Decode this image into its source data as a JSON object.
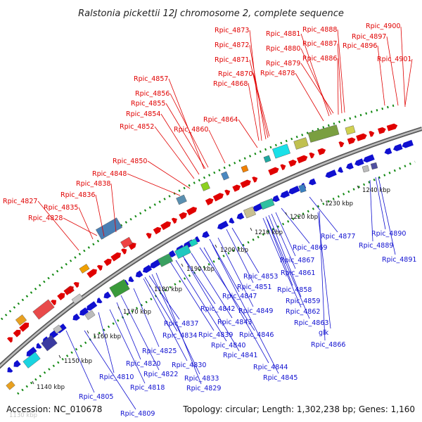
{
  "title": "Ralstonia pickettii 12J chromosome 2, complete sequence",
  "footer": {
    "accession": "Accession: NC_010678",
    "stats": "Topology: circular; Length: 1,302,238 bp; Genes: 1,160"
  },
  "colors": {
    "forward_gene": "#e00000",
    "reverse_gene": "#1010d0",
    "label_top": "#e00000",
    "label_bottom": "#1010d0",
    "gc_dots": "#118811",
    "backbone": "#888888"
  },
  "ticks": [
    "1140 kbp",
    "1150 kbp",
    "1160 kbp",
    "1170 kbp",
    "1180 kbp",
    "1190 kbp",
    "1200 kbp",
    "1210 kbp",
    "1220 kbp",
    "1230 kbp",
    "1240 kbp"
  ],
  "faint_tick": "1130 kbp",
  "top_labels": [
    "Rpic_4873",
    "Rpic_4872",
    "Rpic_4871",
    "Rpic_4870",
    "Rpic_4868",
    "Rpic_4881",
    "Rpic_4880",
    "Rpic_4879",
    "Rpic_4878",
    "Rpic_4888",
    "Rpic_4887",
    "Rpic_4886",
    "Rpic_4900",
    "Rpic_4897",
    "Rpic_4896",
    "Rpic_4901",
    "Rpic_4857",
    "Rpic_4856",
    "Rpic_4855",
    "Rpic_4854",
    "Rpic_4852",
    "Rpic_4860",
    "Rpic_4864",
    "Rpic_4850",
    "Rpic_4848",
    "Rpic_4838",
    "Rpic_4836",
    "Rpic_4827",
    "Rpic_4835",
    "Rpic_4828"
  ],
  "bottom_labels": [
    "Rpic_4877",
    "Rpic_4890",
    "Rpic_4889",
    "Rpic_4891",
    "Rpic_4869",
    "Rpic_4867",
    "Rpic_4861",
    "Rpic_4853",
    "Rpic_4851",
    "Rpic_4847",
    "Rpic_4858",
    "Rpic_4859",
    "Rpic_4849",
    "Rpic_4842",
    "Rpic_4862",
    "Rpic_4843",
    "Rpic_4837",
    "Rpic_4834",
    "Rpic_4839",
    "Rpic_4846",
    "Rpic_4863",
    "glk",
    "Rpic_4840",
    "Rpic_4866",
    "Rpic_4825",
    "Rpic_4841",
    "Rpic_4820",
    "Rpic_4830",
    "Rpic_4844",
    "Rpic_4810",
    "Rpic_4822",
    "Rpic_4833",
    "Rpic_4845",
    "Rpic_4818",
    "Rpic_4829",
    "Rpic_4805",
    "Rpic_4809"
  ]
}
